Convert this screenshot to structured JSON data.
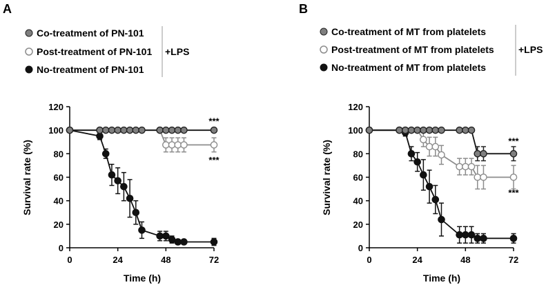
{
  "chart_data": [
    {
      "type": "line",
      "panel_label": "A",
      "xlabel": "Time (h)",
      "ylabel": "Survival rate (%)",
      "xlim": [
        0,
        72
      ],
      "ylim": [
        0,
        120
      ],
      "xticks": [
        0,
        24,
        48,
        72
      ],
      "yticks": [
        0,
        20,
        40,
        60,
        80,
        100,
        120
      ],
      "legend_group_label": "+LPS",
      "series": [
        {
          "name": "Co-treatment of PN-101",
          "color": "#7f7f7f",
          "fill": "#7f7f7f",
          "stroke": "#222222",
          "x": [
            0,
            15,
            18,
            21,
            24,
            27,
            30,
            33,
            36,
            45,
            48,
            51,
            54,
            57,
            72
          ],
          "y": [
            100,
            100,
            100,
            100,
            100,
            100,
            100,
            100,
            100,
            100,
            100,
            100,
            100,
            100,
            100
          ],
          "err": [
            0,
            0,
            0,
            0,
            0,
            0,
            0,
            0,
            0,
            0,
            0,
            0,
            0,
            0,
            0
          ]
        },
        {
          "name": "Post-treatment of PN-101",
          "color": "#8c8c8c",
          "fill": "#ffffff",
          "stroke": "#8c8c8c",
          "x": [
            0,
            15,
            45,
            48,
            51,
            54,
            57,
            72
          ],
          "y": [
            100,
            100,
            100,
            87.5,
            87.5,
            87.5,
            87.5,
            87.5
          ],
          "err": [
            0,
            0,
            0,
            6,
            6,
            6,
            6,
            6
          ]
        },
        {
          "name": "No-treatment of PN-101",
          "color": "#111111",
          "fill": "#111111",
          "stroke": "#111111",
          "x": [
            0,
            15,
            18,
            21,
            24,
            27,
            30,
            33,
            36,
            45,
            48,
            51,
            54,
            57,
            72
          ],
          "y": [
            100,
            95,
            80,
            62,
            57,
            52,
            42,
            30,
            15,
            10,
            10,
            7,
            5,
            5,
            5
          ],
          "err": [
            0,
            3,
            4,
            9,
            11,
            12,
            16,
            10,
            7,
            4,
            4,
            3,
            2,
            2,
            3
          ]
        }
      ],
      "annotations": [
        {
          "text": "***",
          "x": 72,
          "y": 108
        },
        {
          "text": "***",
          "x": 72,
          "y": 75
        }
      ]
    },
    {
      "type": "line",
      "panel_label": "B",
      "xlabel": "Time (h)",
      "ylabel": "Survival rate (%)",
      "xlim": [
        0,
        72
      ],
      "ylim": [
        0,
        120
      ],
      "xticks": [
        0,
        24,
        48,
        72
      ],
      "yticks": [
        0,
        20,
        40,
        60,
        80,
        100,
        120
      ],
      "legend_group_label": "+LPS",
      "series": [
        {
          "name": "Co-treatment of MT from platelets",
          "color": "#7f7f7f",
          "fill": "#7f7f7f",
          "stroke": "#222222",
          "x": [
            0,
            15,
            18,
            21,
            24,
            27,
            30,
            33,
            36,
            45,
            48,
            51,
            54,
            57,
            72
          ],
          "y": [
            100,
            100,
            100,
            100,
            100,
            100,
            100,
            100,
            100,
            100,
            100,
            100,
            80,
            80,
            80
          ],
          "err": [
            0,
            0,
            0,
            0,
            0,
            0,
            0,
            0,
            0,
            0,
            0,
            0,
            6,
            6,
            6
          ]
        },
        {
          "name": "Post-treatment of MT from platelets",
          "color": "#8c8c8c",
          "fill": "#ffffff",
          "stroke": "#8c8c8c",
          "x": [
            0,
            15,
            18,
            21,
            24,
            27,
            30,
            33,
            36,
            45,
            48,
            51,
            54,
            57,
            72
          ],
          "y": [
            100,
            100,
            100,
            100,
            100,
            92,
            86,
            86,
            79,
            69,
            69,
            69,
            60,
            60,
            60
          ],
          "err": [
            0,
            0,
            0,
            0,
            0,
            6,
            8,
            8,
            8,
            7,
            7,
            7,
            10,
            10,
            10
          ]
        },
        {
          "name": "No-treatment of MT from platelets",
          "color": "#111111",
          "fill": "#111111",
          "stroke": "#111111",
          "x": [
            0,
            15,
            18,
            21,
            24,
            27,
            30,
            33,
            36,
            45,
            48,
            51,
            54,
            57,
            72
          ],
          "y": [
            100,
            100,
            98,
            80,
            73,
            62,
            52,
            41,
            24,
            11,
            11,
            11,
            8,
            8,
            8
          ],
          "err": [
            0,
            0,
            3,
            6,
            8,
            13,
            14,
            12,
            14,
            7,
            7,
            7,
            4,
            4,
            4
          ]
        }
      ],
      "annotations": [
        {
          "text": "***",
          "x": 72,
          "y": 91
        },
        {
          "text": "***",
          "x": 72,
          "y": 47
        }
      ]
    }
  ]
}
